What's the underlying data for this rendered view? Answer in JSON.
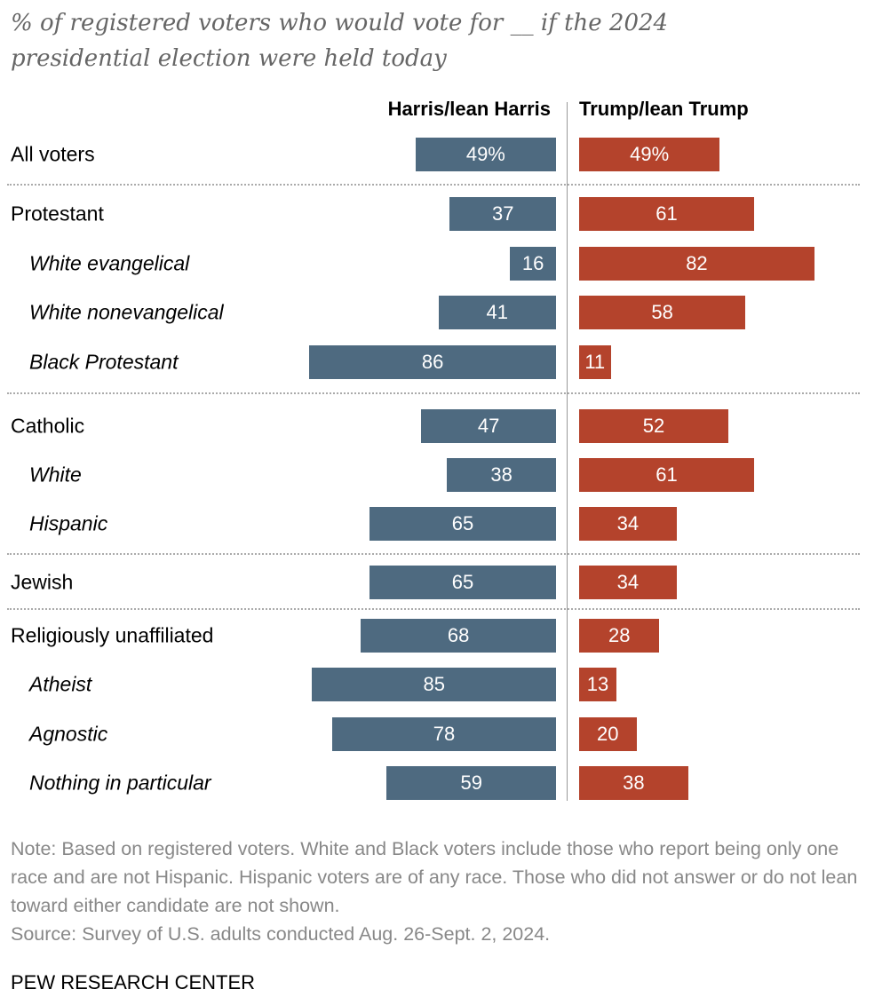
{
  "chart_data": {
    "type": "bar",
    "title": "% of registered voters who would vote for __ if the 2024 presidential election were held today",
    "colors": {
      "harris": "#4e6a80",
      "trump": "#b4432c"
    },
    "series": [
      {
        "name": "Harris/lean Harris",
        "values": [
          49,
          37,
          16,
          41,
          86,
          47,
          38,
          65,
          65,
          68,
          85,
          78,
          59
        ]
      },
      {
        "name": "Trump/lean Trump",
        "values": [
          49,
          61,
          82,
          58,
          11,
          52,
          61,
          34,
          34,
          28,
          13,
          20,
          38
        ]
      }
    ],
    "categories": [
      "All voters",
      "Protestant",
      "White evangelical",
      "White nonevangelical",
      "Black Protestant",
      "Catholic",
      "White",
      "Hispanic",
      "Jewish",
      "Religiously unaffiliated",
      "Atheist",
      "Agnostic",
      "Nothing in particular"
    ],
    "subcategory": [
      false,
      false,
      true,
      true,
      true,
      false,
      true,
      true,
      false,
      false,
      true,
      true,
      true
    ],
    "first_label_suffix": "%",
    "xlim": [
      0,
      100
    ]
  },
  "note": "Note: Based on registered voters. White and Black voters include those who report being only one race and are not Hispanic. Hispanic voters are of any race. Those who did not answer or do not lean toward either candidate are not shown.",
  "source": "Source: Survey of U.S. adults conducted Aug. 26-Sept. 2, 2024.",
  "footer": "PEW RESEARCH CENTER"
}
